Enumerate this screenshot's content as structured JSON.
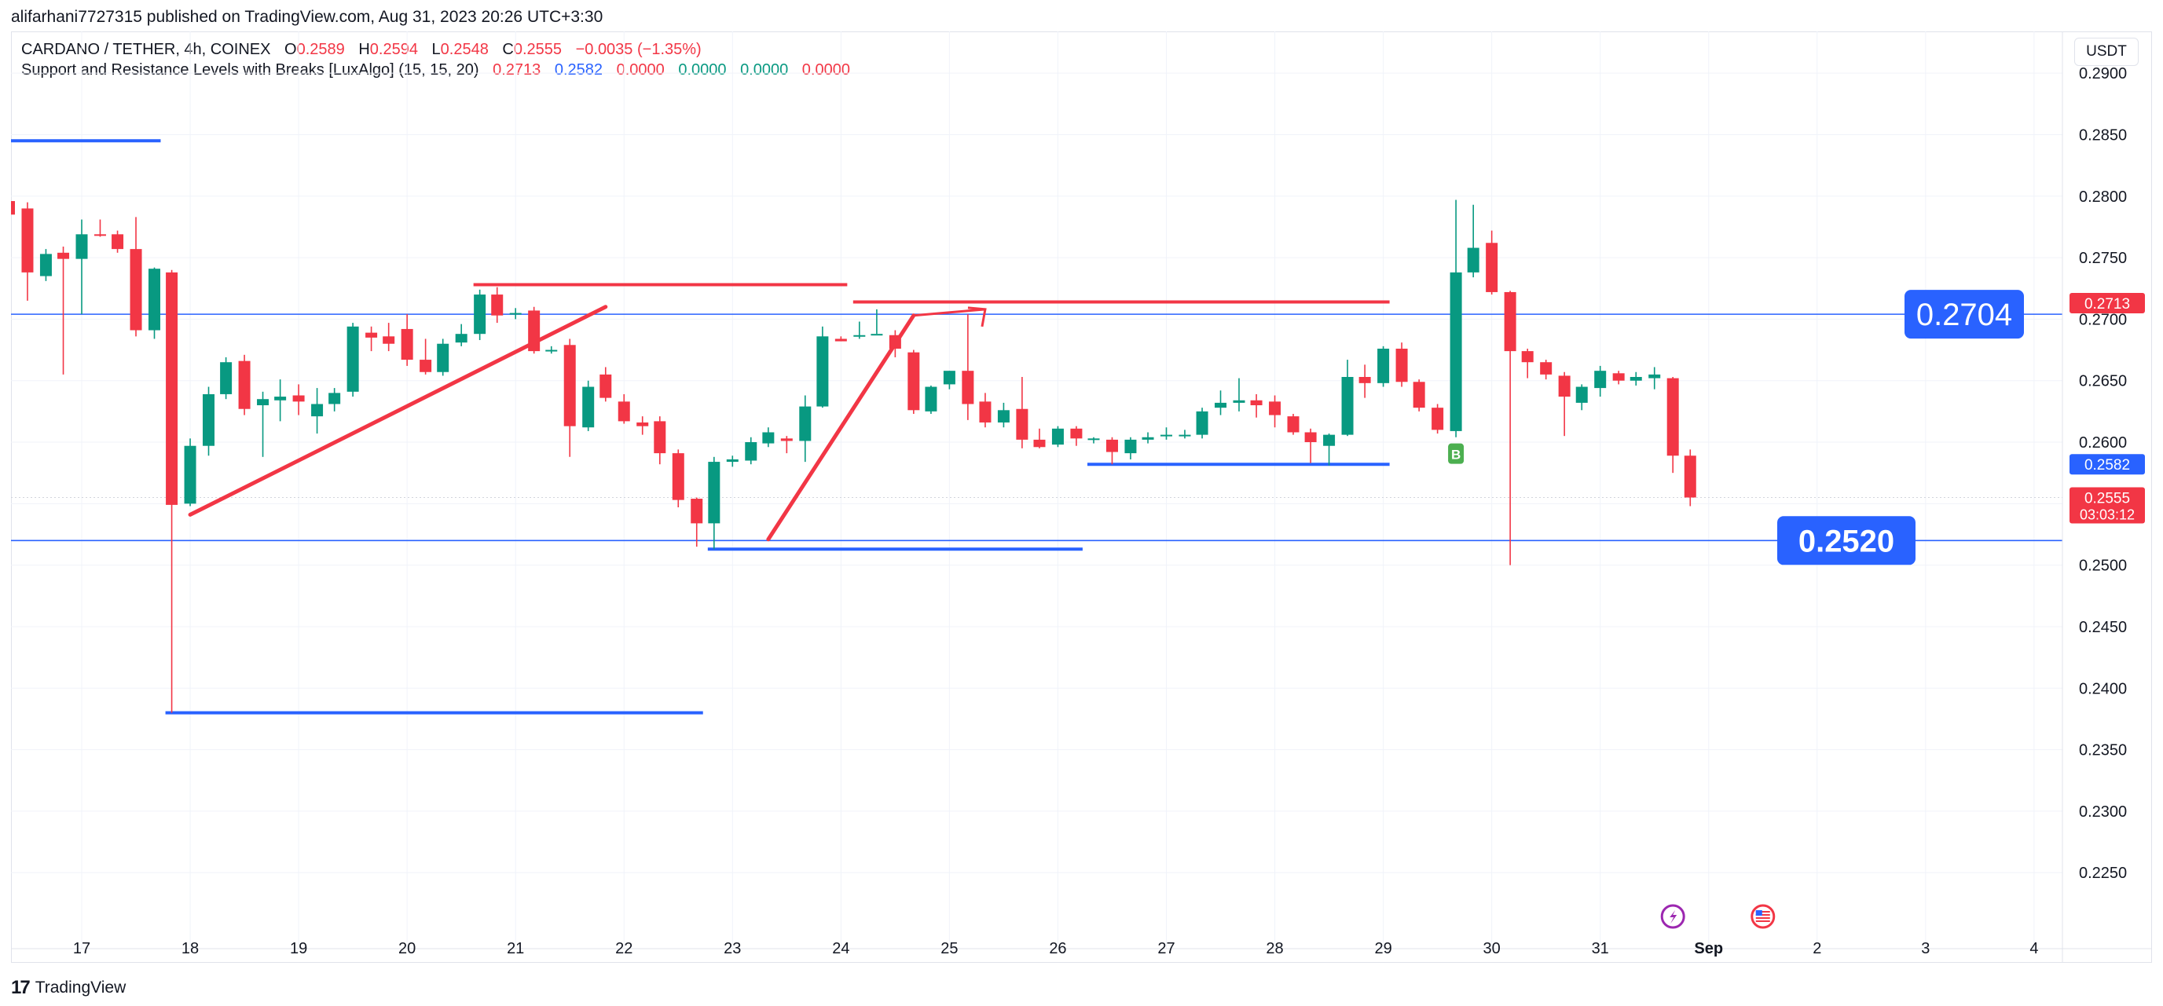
{
  "header": {
    "publisher": "alifarhani7727315 published on TradingView.com, Aug 31, 2023 20:26 UTC+3:30",
    "symbol": "CARDANO / TETHER, 4h, COINEX",
    "ohlc": {
      "o_label": "O",
      "o": "0.2589",
      "h_label": "H",
      "h": "0.2594",
      "l_label": "L",
      "l": "0.2548",
      "c_label": "C",
      "c": "0.2555",
      "change": "−0.0035 (−1.35%)"
    },
    "indicator": "Support and Resistance Levels with Breaks [LuxAlgo] (15, 15, 20)",
    "indicator_values": [
      "0.2713",
      "0.2582",
      "0.0000",
      "0.0000",
      "0.0000",
      "0.0000"
    ],
    "indicator_colors": [
      "#f23645",
      "#2962ff",
      "#f23645",
      "#089981",
      "#089981",
      "#f23645"
    ],
    "currency": "USDT"
  },
  "footer": {
    "brand": "TradingView",
    "brand_mark": "17"
  },
  "colors": {
    "up": "#089981",
    "down": "#f23645",
    "support": "#2962ff",
    "resistance": "#f23645",
    "hline": "#2962ff"
  },
  "chart_data": {
    "type": "candlestick",
    "symbol": "CARDANO / TETHER",
    "interval": "4h",
    "ylim": [
      0.2215,
      0.2925
    ],
    "y_ticks": [
      "0.2900",
      "0.2850",
      "0.2800",
      "0.2750",
      "0.2700",
      "0.2650",
      "0.2600",
      "0.2550",
      "0.2500",
      "0.2450",
      "0.2400",
      "0.2350",
      "0.2300",
      "0.2250"
    ],
    "x_ticks": [
      {
        "label": "17",
        "day": 17
      },
      {
        "label": "18",
        "day": 18
      },
      {
        "label": "19",
        "day": 19
      },
      {
        "label": "20",
        "day": 20
      },
      {
        "label": "21",
        "day": 21
      },
      {
        "label": "22",
        "day": 22
      },
      {
        "label": "23",
        "day": 23
      },
      {
        "label": "24",
        "day": 24
      },
      {
        "label": "25",
        "day": 25
      },
      {
        "label": "26",
        "day": 26
      },
      {
        "label": "27",
        "day": 27
      },
      {
        "label": "28",
        "day": 28
      },
      {
        "label": "29",
        "day": 29
      },
      {
        "label": "30",
        "day": 30
      },
      {
        "label": "31",
        "day": 31
      },
      {
        "label": "Sep",
        "day": 32,
        "bold": true
      },
      {
        "label": "2",
        "day": 33
      },
      {
        "label": "3",
        "day": 34
      },
      {
        "label": "4",
        "day": 35
      }
    ],
    "candles": [
      {
        "t": 16.33,
        "o": 0.2796,
        "h": 0.2806,
        "l": 0.2782,
        "c": 0.2785
      },
      {
        "t": 16.5,
        "o": 0.279,
        "h": 0.2795,
        "l": 0.2715,
        "c": 0.2738
      },
      {
        "t": 16.67,
        "o": 0.2735,
        "h": 0.2757,
        "l": 0.2731,
        "c": 0.2753
      },
      {
        "t": 16.83,
        "o": 0.2754,
        "h": 0.2759,
        "l": 0.2655,
        "c": 0.2749
      },
      {
        "t": 17.0,
        "o": 0.2749,
        "h": 0.2781,
        "l": 0.2704,
        "c": 0.2769
      },
      {
        "t": 17.17,
        "o": 0.2769,
        "h": 0.2781,
        "l": 0.2767,
        "c": 0.2768
      },
      {
        "t": 17.33,
        "o": 0.2769,
        "h": 0.2772,
        "l": 0.2754,
        "c": 0.2757
      },
      {
        "t": 17.5,
        "o": 0.2757,
        "h": 0.2783,
        "l": 0.2686,
        "c": 0.2691
      },
      {
        "t": 17.67,
        "o": 0.2691,
        "h": 0.2742,
        "l": 0.2684,
        "c": 0.2741
      },
      {
        "t": 17.83,
        "o": 0.2738,
        "h": 0.274,
        "l": 0.238,
        "c": 0.2549
      },
      {
        "t": 18.0,
        "o": 0.255,
        "h": 0.2603,
        "l": 0.2548,
        "c": 0.2597
      },
      {
        "t": 18.17,
        "o": 0.2597,
        "h": 0.2645,
        "l": 0.2589,
        "c": 0.2639
      },
      {
        "t": 18.33,
        "o": 0.2639,
        "h": 0.2669,
        "l": 0.2635,
        "c": 0.2665
      },
      {
        "t": 18.5,
        "o": 0.2666,
        "h": 0.2671,
        "l": 0.2622,
        "c": 0.2627
      },
      {
        "t": 18.67,
        "o": 0.263,
        "h": 0.2641,
        "l": 0.2588,
        "c": 0.2635
      },
      {
        "t": 18.83,
        "o": 0.2634,
        "h": 0.2651,
        "l": 0.2617,
        "c": 0.2637
      },
      {
        "t": 19.0,
        "o": 0.2638,
        "h": 0.2647,
        "l": 0.2622,
        "c": 0.2633
      },
      {
        "t": 19.17,
        "o": 0.2621,
        "h": 0.2644,
        "l": 0.2607,
        "c": 0.2631
      },
      {
        "t": 19.33,
        "o": 0.2631,
        "h": 0.2644,
        "l": 0.2625,
        "c": 0.264
      },
      {
        "t": 19.5,
        "o": 0.2641,
        "h": 0.2697,
        "l": 0.2637,
        "c": 0.2694
      },
      {
        "t": 19.67,
        "o": 0.2689,
        "h": 0.2694,
        "l": 0.2674,
        "c": 0.2685
      },
      {
        "t": 19.83,
        "o": 0.2686,
        "h": 0.2697,
        "l": 0.2674,
        "c": 0.268
      },
      {
        "t": 20.0,
        "o": 0.2692,
        "h": 0.2704,
        "l": 0.2662,
        "c": 0.2667
      },
      {
        "t": 20.17,
        "o": 0.2667,
        "h": 0.2684,
        "l": 0.2655,
        "c": 0.2657
      },
      {
        "t": 20.33,
        "o": 0.2657,
        "h": 0.2684,
        "l": 0.2654,
        "c": 0.268
      },
      {
        "t": 20.5,
        "o": 0.2681,
        "h": 0.2696,
        "l": 0.2678,
        "c": 0.2688
      },
      {
        "t": 20.67,
        "o": 0.2688,
        "h": 0.2724,
        "l": 0.2683,
        "c": 0.272
      },
      {
        "t": 20.83,
        "o": 0.272,
        "h": 0.2726,
        "l": 0.2697,
        "c": 0.2703
      },
      {
        "t": 21.0,
        "o": 0.2705,
        "h": 0.2709,
        "l": 0.27,
        "c": 0.2705
      },
      {
        "t": 21.17,
        "o": 0.2707,
        "h": 0.271,
        "l": 0.2672,
        "c": 0.2674
      },
      {
        "t": 21.33,
        "o": 0.2674,
        "h": 0.2678,
        "l": 0.2672,
        "c": 0.2675
      },
      {
        "t": 21.5,
        "o": 0.2679,
        "h": 0.2684,
        "l": 0.2588,
        "c": 0.2613
      },
      {
        "t": 21.67,
        "o": 0.2612,
        "h": 0.265,
        "l": 0.2609,
        "c": 0.2645
      },
      {
        "t": 21.83,
        "o": 0.2655,
        "h": 0.2661,
        "l": 0.2633,
        "c": 0.2636
      },
      {
        "t": 22.0,
        "o": 0.2633,
        "h": 0.2639,
        "l": 0.2615,
        "c": 0.2617
      },
      {
        "t": 22.17,
        "o": 0.2616,
        "h": 0.2621,
        "l": 0.2606,
        "c": 0.2613
      },
      {
        "t": 22.33,
        "o": 0.2617,
        "h": 0.2621,
        "l": 0.2582,
        "c": 0.2591
      },
      {
        "t": 22.5,
        "o": 0.2591,
        "h": 0.2594,
        "l": 0.2547,
        "c": 0.2553
      },
      {
        "t": 22.67,
        "o": 0.2554,
        "h": 0.2555,
        "l": 0.2515,
        "c": 0.2534
      },
      {
        "t": 22.83,
        "o": 0.2534,
        "h": 0.2588,
        "l": 0.2513,
        "c": 0.2584
      },
      {
        "t": 23.0,
        "o": 0.2584,
        "h": 0.2589,
        "l": 0.258,
        "c": 0.2586
      },
      {
        "t": 23.17,
        "o": 0.2585,
        "h": 0.2604,
        "l": 0.2582,
        "c": 0.26
      },
      {
        "t": 23.33,
        "o": 0.2599,
        "h": 0.2612,
        "l": 0.2596,
        "c": 0.2608
      },
      {
        "t": 23.5,
        "o": 0.2603,
        "h": 0.2605,
        "l": 0.2591,
        "c": 0.2601
      },
      {
        "t": 23.67,
        "o": 0.2601,
        "h": 0.2638,
        "l": 0.2584,
        "c": 0.2629
      },
      {
        "t": 23.83,
        "o": 0.2629,
        "h": 0.2694,
        "l": 0.2628,
        "c": 0.2686
      },
      {
        "t": 24.0,
        "o": 0.2684,
        "h": 0.2686,
        "l": 0.2682,
        "c": 0.2682
      },
      {
        "t": 24.17,
        "o": 0.2686,
        "h": 0.2698,
        "l": 0.2684,
        "c": 0.2687
      },
      {
        "t": 24.33,
        "o": 0.2688,
        "h": 0.2708,
        "l": 0.2688,
        "c": 0.2688
      },
      {
        "t": 24.5,
        "o": 0.2687,
        "h": 0.2691,
        "l": 0.2669,
        "c": 0.2676
      },
      {
        "t": 24.67,
        "o": 0.2673,
        "h": 0.2675,
        "l": 0.2623,
        "c": 0.2626
      },
      {
        "t": 24.83,
        "o": 0.2625,
        "h": 0.2646,
        "l": 0.2623,
        "c": 0.2645
      },
      {
        "t": 25.0,
        "o": 0.2647,
        "h": 0.2658,
        "l": 0.2643,
        "c": 0.2658
      },
      {
        "t": 25.17,
        "o": 0.2658,
        "h": 0.2704,
        "l": 0.2618,
        "c": 0.2631
      },
      {
        "t": 25.33,
        "o": 0.2633,
        "h": 0.264,
        "l": 0.2612,
        "c": 0.2616
      },
      {
        "t": 25.5,
        "o": 0.2616,
        "h": 0.2632,
        "l": 0.2612,
        "c": 0.2626
      },
      {
        "t": 25.67,
        "o": 0.2627,
        "h": 0.2653,
        "l": 0.2595,
        "c": 0.2602
      },
      {
        "t": 25.83,
        "o": 0.2602,
        "h": 0.2611,
        "l": 0.2595,
        "c": 0.2596
      },
      {
        "t": 26.0,
        "o": 0.2598,
        "h": 0.2613,
        "l": 0.2596,
        "c": 0.2611
      },
      {
        "t": 26.17,
        "o": 0.2611,
        "h": 0.2613,
        "l": 0.2597,
        "c": 0.2603
      },
      {
        "t": 26.33,
        "o": 0.2602,
        "h": 0.2604,
        "l": 0.2599,
        "c": 0.2603
      },
      {
        "t": 26.5,
        "o": 0.2602,
        "h": 0.2604,
        "l": 0.2582,
        "c": 0.2592
      },
      {
        "t": 26.67,
        "o": 0.2591,
        "h": 0.2604,
        "l": 0.2586,
        "c": 0.2602
      },
      {
        "t": 26.83,
        "o": 0.2602,
        "h": 0.2608,
        "l": 0.2599,
        "c": 0.2604
      },
      {
        "t": 27.0,
        "o": 0.2605,
        "h": 0.2612,
        "l": 0.2602,
        "c": 0.2606
      },
      {
        "t": 27.17,
        "o": 0.2605,
        "h": 0.261,
        "l": 0.2603,
        "c": 0.2606
      },
      {
        "t": 27.33,
        "o": 0.2606,
        "h": 0.2628,
        "l": 0.2603,
        "c": 0.2625
      },
      {
        "t": 27.5,
        "o": 0.2628,
        "h": 0.2642,
        "l": 0.2622,
        "c": 0.2632
      },
      {
        "t": 27.67,
        "o": 0.2632,
        "h": 0.2652,
        "l": 0.2625,
        "c": 0.2634
      },
      {
        "t": 27.83,
        "o": 0.2634,
        "h": 0.2639,
        "l": 0.262,
        "c": 0.263
      },
      {
        "t": 28.0,
        "o": 0.2633,
        "h": 0.2638,
        "l": 0.2612,
        "c": 0.2622
      },
      {
        "t": 28.17,
        "o": 0.2621,
        "h": 0.2623,
        "l": 0.2606,
        "c": 0.2608
      },
      {
        "t": 28.33,
        "o": 0.2608,
        "h": 0.2611,
        "l": 0.2583,
        "c": 0.26
      },
      {
        "t": 28.5,
        "o": 0.2597,
        "h": 0.2607,
        "l": 0.2581,
        "c": 0.2606
      },
      {
        "t": 28.67,
        "o": 0.2606,
        "h": 0.2667,
        "l": 0.2605,
        "c": 0.2653
      },
      {
        "t": 28.83,
        "o": 0.2653,
        "h": 0.2663,
        "l": 0.2636,
        "c": 0.2648
      },
      {
        "t": 29.0,
        "o": 0.2648,
        "h": 0.2678,
        "l": 0.2645,
        "c": 0.2676
      },
      {
        "t": 29.17,
        "o": 0.2676,
        "h": 0.2681,
        "l": 0.2645,
        "c": 0.2649
      },
      {
        "t": 29.33,
        "o": 0.2649,
        "h": 0.2651,
        "l": 0.2625,
        "c": 0.2628
      },
      {
        "t": 29.5,
        "o": 0.2628,
        "h": 0.2631,
        "l": 0.2607,
        "c": 0.261
      },
      {
        "t": 29.67,
        "o": 0.2609,
        "h": 0.2797,
        "l": 0.2604,
        "c": 0.2738
      },
      {
        "t": 29.83,
        "o": 0.2738,
        "h": 0.2793,
        "l": 0.2734,
        "c": 0.2758
      },
      {
        "t": 30.0,
        "o": 0.2762,
        "h": 0.2772,
        "l": 0.272,
        "c": 0.2722
      },
      {
        "t": 30.17,
        "o": 0.2722,
        "h": 0.2723,
        "l": 0.25,
        "c": 0.2674
      },
      {
        "t": 30.33,
        "o": 0.2674,
        "h": 0.2676,
        "l": 0.2652,
        "c": 0.2665
      },
      {
        "t": 30.5,
        "o": 0.2665,
        "h": 0.2667,
        "l": 0.2651,
        "c": 0.2655
      },
      {
        "t": 30.67,
        "o": 0.2654,
        "h": 0.2657,
        "l": 0.2605,
        "c": 0.2637
      },
      {
        "t": 30.83,
        "o": 0.2632,
        "h": 0.2647,
        "l": 0.2626,
        "c": 0.2645
      },
      {
        "t": 31.0,
        "o": 0.2644,
        "h": 0.2662,
        "l": 0.2637,
        "c": 0.2658
      },
      {
        "t": 31.17,
        "o": 0.2656,
        "h": 0.2658,
        "l": 0.2647,
        "c": 0.265
      },
      {
        "t": 31.33,
        "o": 0.265,
        "h": 0.2657,
        "l": 0.2646,
        "c": 0.2653
      },
      {
        "t": 31.5,
        "o": 0.2652,
        "h": 0.2661,
        "l": 0.2643,
        "c": 0.2655
      },
      {
        "t": 31.67,
        "o": 0.2652,
        "h": 0.2653,
        "l": 0.2575,
        "c": 0.2589
      },
      {
        "t": 31.83,
        "o": 0.2589,
        "h": 0.2594,
        "l": 0.2548,
        "c": 0.2555
      }
    ],
    "resistance_levels": [
      {
        "t1": 20.67,
        "t2": 24.0,
        "y": 0.2728
      },
      {
        "t1": 24.17,
        "t2": 29.0,
        "y": 0.2714
      }
    ],
    "support_levels": [
      {
        "t1": 16.0,
        "t2": 17.67,
        "y": 0.2845
      },
      {
        "t1": 17.83,
        "t2": 22.67,
        "y": 0.238
      },
      {
        "t1": 22.83,
        "t2": 26.17,
        "y": 0.2513
      },
      {
        "t1": 26.33,
        "t2": 29.0,
        "y": 0.2582
      }
    ],
    "horizontal_lines": [
      {
        "y": 0.2704,
        "label": "0.2704"
      },
      {
        "y": 0.252,
        "label": "0.2520"
      }
    ],
    "trend_lines": [
      {
        "t1": 18.0,
        "y1": 0.2541,
        "t2": 21.83,
        "y2": 0.271
      },
      {
        "t1": 23.33,
        "y1": 0.2521,
        "t2": 24.67,
        "y2": 0.2703
      }
    ],
    "arrow": {
      "t1": 24.67,
      "y1": 0.2703,
      "t2": 25.33,
      "y2": 0.2708
    },
    "marker": {
      "t": 29.67,
      "y": 0.259,
      "label": "B"
    },
    "price_tags": [
      {
        "value": "0.2713",
        "y": 0.2713,
        "bg": "#f23645"
      },
      {
        "value": "0.2582",
        "y": 0.2582,
        "bg": "#2962ff"
      },
      {
        "value": "0.2555",
        "countdown": "03:03:12",
        "y": 0.2555,
        "bg": "#f23645"
      }
    ],
    "event_icons": [
      {
        "t": 31.67,
        "kind": "flash-icon"
      },
      {
        "t": 32.5,
        "kind": "us-flag-icon"
      }
    ]
  }
}
